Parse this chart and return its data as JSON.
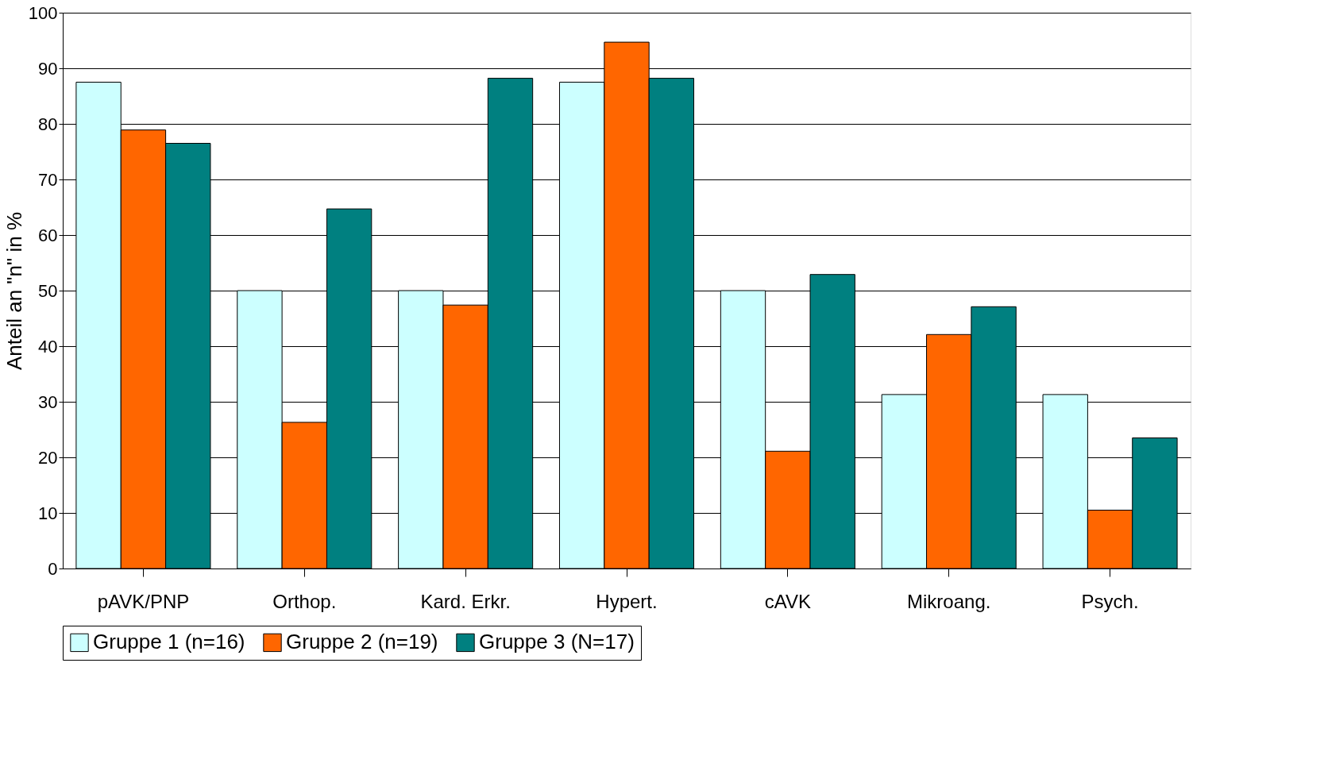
{
  "chart_data": {
    "type": "bar",
    "ylabel": "Anteil an \"n\" in %",
    "categories": [
      "pAVK/PNP",
      "Orthop.",
      "Kard. Erkr.",
      "Hypert.",
      "cAVK",
      "Mikroang.",
      "Psych."
    ],
    "series": [
      {
        "name": "Gruppe 1 (n=16)",
        "color": "#ccffff",
        "values": [
          87.5,
          50,
          50,
          87.5,
          50,
          31.3,
          31.3
        ]
      },
      {
        "name": "Gruppe 2 (n=19)",
        "color": "#ff6600",
        "values": [
          78.9,
          26.3,
          47.4,
          94.7,
          21.1,
          42.1,
          10.5
        ]
      },
      {
        "name": "Gruppe 3 (N=17)",
        "color": "#008080",
        "values": [
          76.5,
          64.7,
          88.2,
          88.2,
          52.9,
          47.1,
          23.5
        ]
      }
    ],
    "ylim": [
      0,
      100
    ],
    "yticks": [
      0,
      10,
      20,
      30,
      40,
      50,
      60,
      70,
      80,
      90,
      100
    ],
    "grid": "y",
    "legend": "bottom"
  }
}
